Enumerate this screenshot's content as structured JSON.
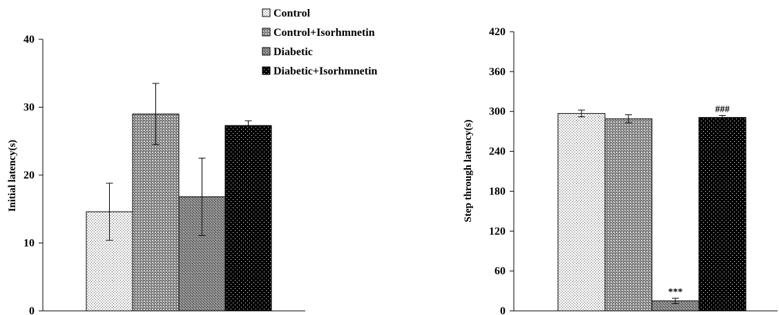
{
  "legend": [
    {
      "label": "Control",
      "pattern": "dots-light"
    },
    {
      "label": "Control+Isorhmnetin",
      "pattern": "dense-grey"
    },
    {
      "label": "Diabetic",
      "pattern": "cross-grey"
    },
    {
      "label": "Diabetic+Isorhmnetin",
      "pattern": "black-dots"
    }
  ],
  "chart_data": [
    {
      "type": "bar",
      "categories": [
        "Control",
        "Control+Isorhmnetin",
        "Diabetic",
        "Diabetic+Isorhmnetin"
      ],
      "values": [
        14.6,
        29.0,
        16.8,
        27.3
      ],
      "errors": [
        4.2,
        4.5,
        5.7,
        0.7
      ],
      "ylabel": "Initial latency(s)",
      "ylim": [
        0,
        40
      ],
      "yticks": [
        "0",
        "10",
        "20",
        "30",
        "40"
      ],
      "annotations": [
        "",
        "",
        "",
        ""
      ]
    },
    {
      "type": "bar",
      "categories": [
        "Control",
        "Control+Isorhmnetin",
        "Diabetic",
        "Diabetic+Isorhmnetin"
      ],
      "values": [
        297,
        289,
        15,
        291
      ],
      "errors": [
        5,
        6,
        4,
        3
      ],
      "ylabel": "Step through latency(s)",
      "ylim": [
        0,
        420
      ],
      "yticks": [
        "0",
        "60",
        "120",
        "180",
        "240",
        "300",
        "360",
        "420"
      ],
      "annotations": [
        "",
        "",
        "***",
        "###"
      ]
    }
  ],
  "colors": {
    "bar_outline": "#000000",
    "axis": "#000000"
  }
}
